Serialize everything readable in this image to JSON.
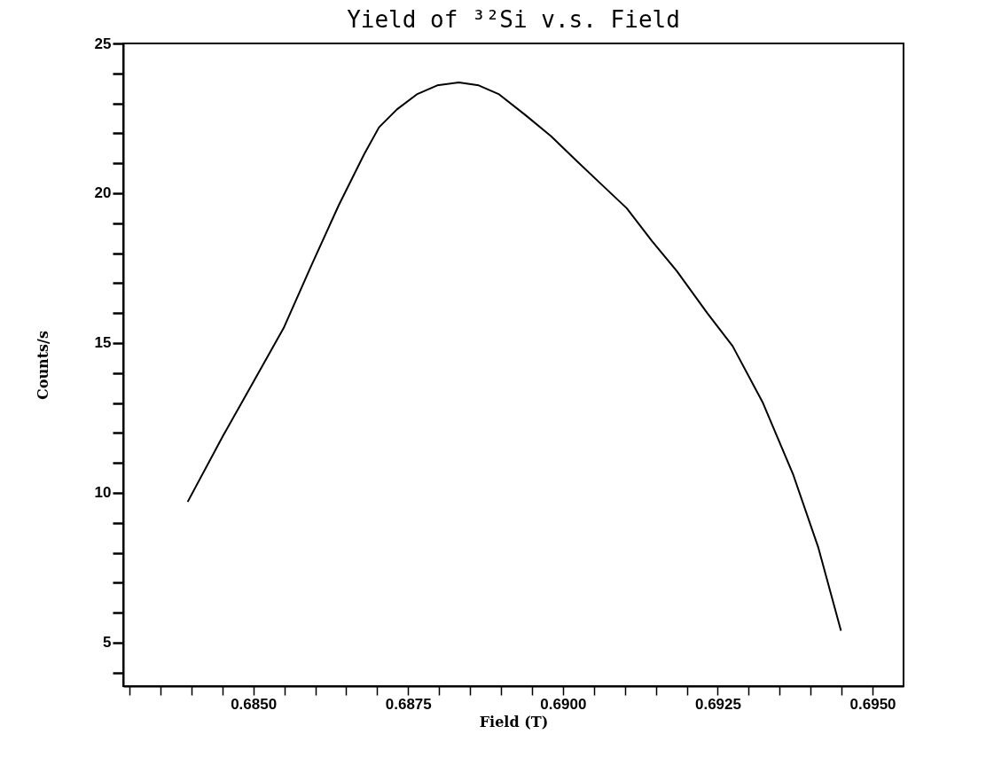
{
  "chart_data": {
    "type": "line",
    "title": "Yield of ³²Si v.s. Field",
    "xlabel": "Field (T)",
    "ylabel": "Counts/s",
    "x": [
      0.68394,
      0.68451,
      0.685,
      0.68549,
      0.68594,
      0.68638,
      0.68679,
      0.68703,
      0.68732,
      0.68764,
      0.68797,
      0.68832,
      0.68864,
      0.68897,
      0.6894,
      0.68981,
      0.69021,
      0.69062,
      0.69103,
      0.69144,
      0.69184,
      0.69233,
      0.69274,
      0.69323,
      0.69372,
      0.69412,
      0.69449
    ],
    "series": [
      {
        "color": "#000000",
        "values": [
          9.7,
          11.9,
          13.7,
          15.5,
          17.6,
          19.6,
          21.3,
          22.2,
          22.8,
          23.3,
          23.6,
          23.7,
          23.6,
          23.3,
          22.6,
          21.9,
          21.1,
          20.3,
          19.5,
          18.4,
          17.4,
          16.0,
          14.9,
          13.0,
          10.6,
          8.2,
          5.4
        ]
      }
    ],
    "xlim": [
      0.6829,
      0.6955
    ],
    "ylim": [
      3.55,
      25
    ],
    "xticks": [
      {
        "value": 0.683,
        "label": null
      },
      {
        "value": 0.6835,
        "label": null
      },
      {
        "value": 0.684,
        "label": null
      },
      {
        "value": 0.6845,
        "label": null
      },
      {
        "value": 0.685,
        "label": "0.6850"
      },
      {
        "value": 0.6855,
        "label": null
      },
      {
        "value": 0.686,
        "label": null
      },
      {
        "value": 0.6865,
        "label": null
      },
      {
        "value": 0.687,
        "label": null
      },
      {
        "value": 0.6875,
        "label": "0.6875"
      },
      {
        "value": 0.688,
        "label": null
      },
      {
        "value": 0.6885,
        "label": null
      },
      {
        "value": 0.689,
        "label": null
      },
      {
        "value": 0.6895,
        "label": null
      },
      {
        "value": 0.69,
        "label": "0.6900"
      },
      {
        "value": 0.6905,
        "label": null
      },
      {
        "value": 0.691,
        "label": null
      },
      {
        "value": 0.6915,
        "label": null
      },
      {
        "value": 0.692,
        "label": null
      },
      {
        "value": 0.6925,
        "label": "0.6925"
      },
      {
        "value": 0.693,
        "label": null
      },
      {
        "value": 0.6935,
        "label": null
      },
      {
        "value": 0.694,
        "label": null
      },
      {
        "value": 0.6945,
        "label": null
      },
      {
        "value": 0.695,
        "label": "0.6950"
      }
    ],
    "yticks": [
      {
        "value": 4,
        "label": null
      },
      5,
      {
        "value": 6,
        "label": null
      },
      {
        "value": 7,
        "label": null
      },
      {
        "value": 8,
        "label": null
      },
      {
        "value": 9,
        "label": null
      },
      10,
      {
        "value": 11,
        "label": null
      },
      {
        "value": 12,
        "label": null
      },
      {
        "value": 13,
        "label": null
      },
      {
        "value": 14,
        "label": null
      },
      15,
      {
        "value": 16,
        "label": null
      },
      {
        "value": 17,
        "label": null
      },
      {
        "value": 18,
        "label": null
      },
      {
        "value": 19,
        "label": null
      },
      20,
      {
        "value": 21,
        "label": null
      },
      {
        "value": 22,
        "label": null
      },
      {
        "value": 23,
        "label": null
      },
      {
        "value": 24,
        "label": null
      },
      25
    ],
    "grid": false,
    "legend": false,
    "marker": "none",
    "line_style": "solid"
  }
}
